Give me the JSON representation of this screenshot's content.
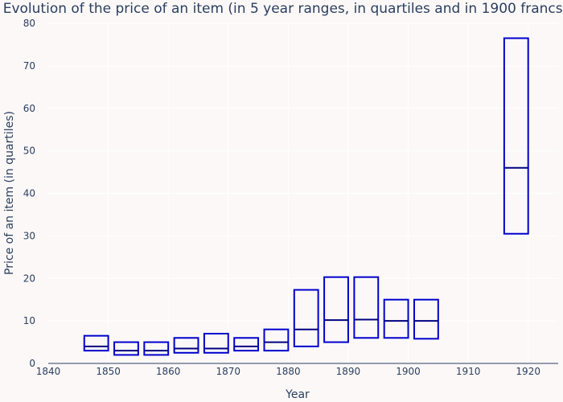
{
  "chart_data": {
    "type": "box",
    "title": "Evolution of the price of an item (in 5 year ranges, in quartiles and in 1900 francs)",
    "xlabel": "Year",
    "ylabel": "Price of an item (in quartiles)",
    "xlim": [
      1840,
      1925
    ],
    "ylim": [
      0,
      80
    ],
    "xticks": [
      1840,
      1850,
      1860,
      1870,
      1880,
      1890,
      1900,
      1910,
      1920
    ],
    "yticks": [
      0,
      10,
      20,
      30,
      40,
      50,
      60,
      70,
      80
    ],
    "grid": true,
    "box_color": "#0000cc",
    "median_color": "#000080",
    "boxes": [
      {
        "x_start": 1846,
        "x_end": 1850,
        "q1": 3.0,
        "median": 4.0,
        "q3": 6.5
      },
      {
        "x_start": 1851,
        "x_end": 1855,
        "q1": 2.0,
        "median": 3.0,
        "q3": 5.0
      },
      {
        "x_start": 1856,
        "x_end": 1860,
        "q1": 2.0,
        "median": 3.0,
        "q3": 5.0
      },
      {
        "x_start": 1861,
        "x_end": 1865,
        "q1": 2.5,
        "median": 3.5,
        "q3": 6.0
      },
      {
        "x_start": 1866,
        "x_end": 1870,
        "q1": 2.5,
        "median": 3.5,
        "q3": 7.0
      },
      {
        "x_start": 1871,
        "x_end": 1875,
        "q1": 3.0,
        "median": 4.0,
        "q3": 6.0
      },
      {
        "x_start": 1876,
        "x_end": 1880,
        "q1": 3.0,
        "median": 5.0,
        "q3": 8.0
      },
      {
        "x_start": 1881,
        "x_end": 1885,
        "q1": 4.0,
        "median": 8.0,
        "q3": 17.3
      },
      {
        "x_start": 1886,
        "x_end": 1890,
        "q1": 5.0,
        "median": 10.2,
        "q3": 20.3
      },
      {
        "x_start": 1891,
        "x_end": 1895,
        "q1": 6.0,
        "median": 10.3,
        "q3": 20.3
      },
      {
        "x_start": 1896,
        "x_end": 1900,
        "q1": 6.0,
        "median": 10.0,
        "q3": 15.0
      },
      {
        "x_start": 1901,
        "x_end": 1905,
        "q1": 5.8,
        "median": 10.0,
        "q3": 15.0
      },
      {
        "x_start": 1916,
        "x_end": 1920,
        "q1": 30.5,
        "median": 46.0,
        "q3": 76.5
      }
    ]
  }
}
